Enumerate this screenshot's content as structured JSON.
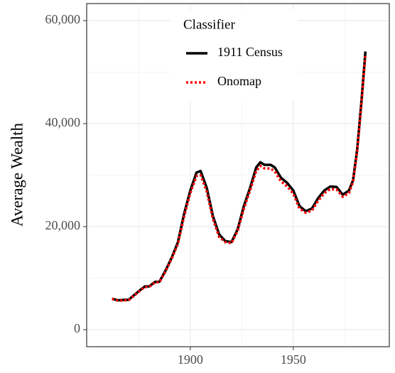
{
  "chart_data": {
    "type": "line",
    "y_label": "Average Wealth",
    "legend_title": "Classifier",
    "x": [
      1862,
      1865,
      1868,
      1870,
      1873,
      1876,
      1878,
      1880,
      1883,
      1885,
      1888,
      1891,
      1894,
      1897,
      1900,
      1903,
      1905,
      1908,
      1911,
      1914,
      1917,
      1920,
      1923,
      1926,
      1929,
      1932,
      1934,
      1936,
      1939,
      1941,
      1944,
      1947,
      1950,
      1953,
      1956,
      1959,
      1962,
      1965,
      1968,
      1971,
      1974,
      1977,
      1979,
      1981,
      1983,
      1985
    ],
    "series": [
      {
        "name": "1911 Census",
        "color": "#000000",
        "dash": "solid",
        "values": [
          6000,
          5700,
          5800,
          5800,
          6800,
          7800,
          8400,
          8400,
          9300,
          9300,
          11500,
          14000,
          17000,
          22500,
          27000,
          30500,
          30800,
          27500,
          22000,
          18500,
          17200,
          17000,
          19500,
          24000,
          27500,
          31500,
          32500,
          32000,
          32000,
          31500,
          29500,
          28500,
          27000,
          24000,
          23000,
          23500,
          25500,
          27000,
          27800,
          27700,
          26200,
          27000,
          29000,
          35000,
          44000,
          54000
        ]
      },
      {
        "name": "Onomap",
        "color": "#ff0000",
        "dash": "dotted",
        "values": [
          6000,
          5600,
          5700,
          5700,
          6700,
          7700,
          8300,
          8300,
          9200,
          9200,
          11300,
          13800,
          16700,
          22000,
          26500,
          29800,
          30000,
          26800,
          21500,
          18000,
          17000,
          16800,
          19200,
          23500,
          27000,
          30800,
          31800,
          31300,
          31300,
          30700,
          28800,
          27800,
          26400,
          23500,
          22700,
          23100,
          25000,
          26500,
          27300,
          27200,
          25800,
          26500,
          28700,
          34600,
          43500,
          53500
        ]
      }
    ],
    "xlim": [
      1849.7,
      1996.6
    ],
    "ylim": [
      -3310,
      63310
    ],
    "xticks": [
      1900,
      1950
    ],
    "yticks": [
      0,
      {
        "value": 20000,
        "label": "20,000"
      },
      {
        "value": 40000,
        "label": "40,000"
      },
      {
        "value": 60000,
        "label": "60,000"
      }
    ],
    "x_minor": [
      1875,
      1925,
      1975
    ],
    "y_minor": [
      10000,
      30000,
      50000
    ],
    "grid": true,
    "legend_position": "top"
  }
}
